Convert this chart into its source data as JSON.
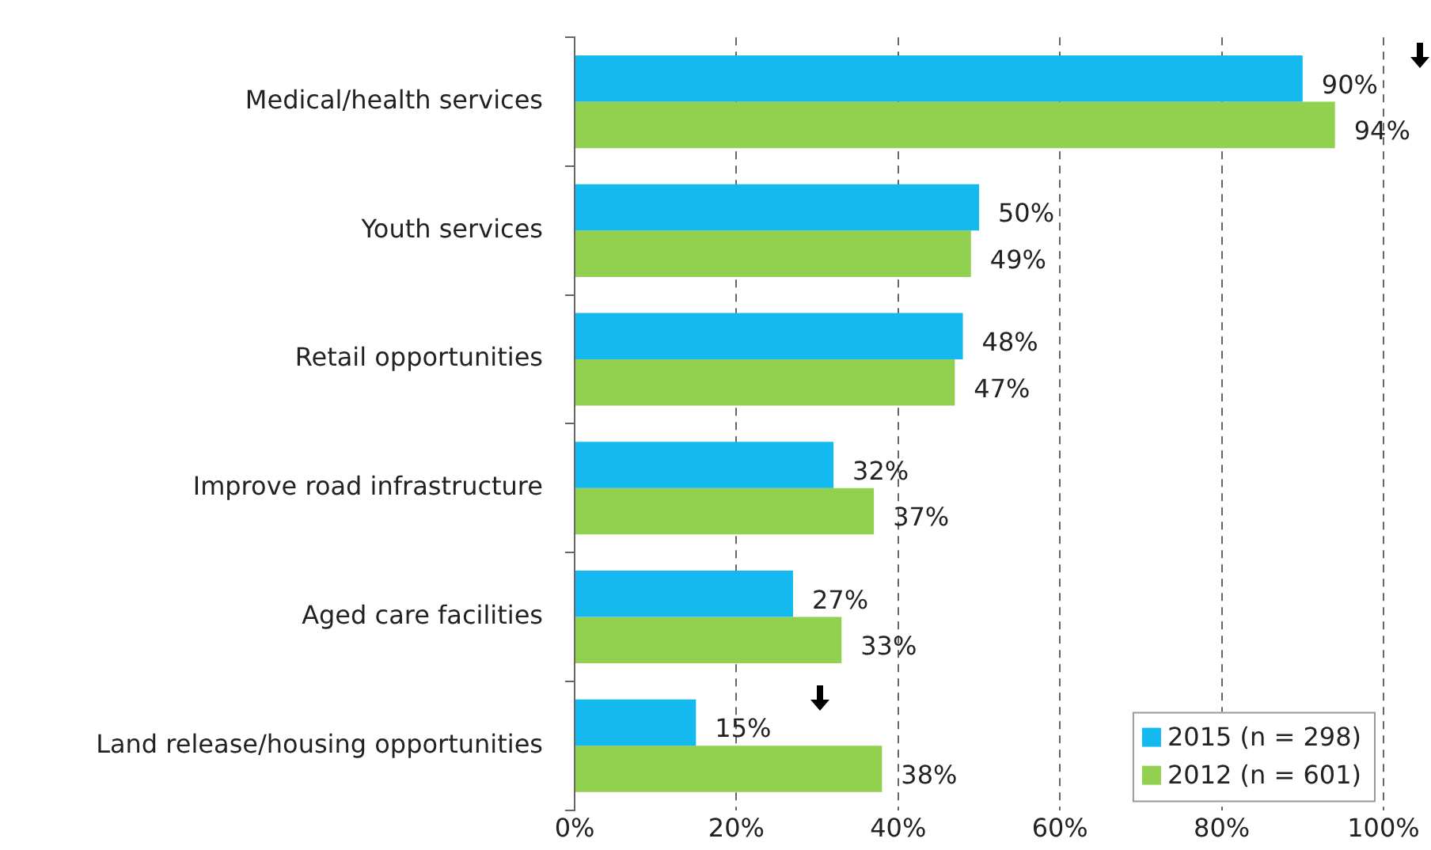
{
  "chart_data": {
    "type": "bar",
    "orientation": "horizontal",
    "categories": [
      "Medical/health services",
      "Youth services",
      "Retail opportunities",
      "Improve road infrastructure",
      "Aged care facilities",
      "Land release/housing opportunities"
    ],
    "series": [
      {
        "name": "2015 (n = 298)",
        "color": "#14b9f0",
        "values": [
          90,
          50,
          48,
          32,
          27,
          15
        ],
        "value_labels": [
          "90%",
          "50%",
          "48%",
          "32%",
          "27%",
          "15%"
        ]
      },
      {
        "name": "2012 (n = 601)",
        "color": "#92d050",
        "values": [
          94,
          49,
          47,
          37,
          33,
          38
        ],
        "value_labels": [
          "94%",
          "49%",
          "47%",
          "37%",
          "33%",
          "38%"
        ]
      }
    ],
    "xlim": [
      0,
      100
    ],
    "xticks": [
      {
        "value": 0,
        "label": "0%"
      },
      {
        "value": 20,
        "label": "20%"
      },
      {
        "value": 40,
        "label": "40%"
      },
      {
        "value": 60,
        "label": "60%"
      },
      {
        "value": 80,
        "label": "80%"
      },
      {
        "value": 100,
        "label": "100%"
      }
    ],
    "grid": "x",
    "legend": "bottom right"
  }
}
